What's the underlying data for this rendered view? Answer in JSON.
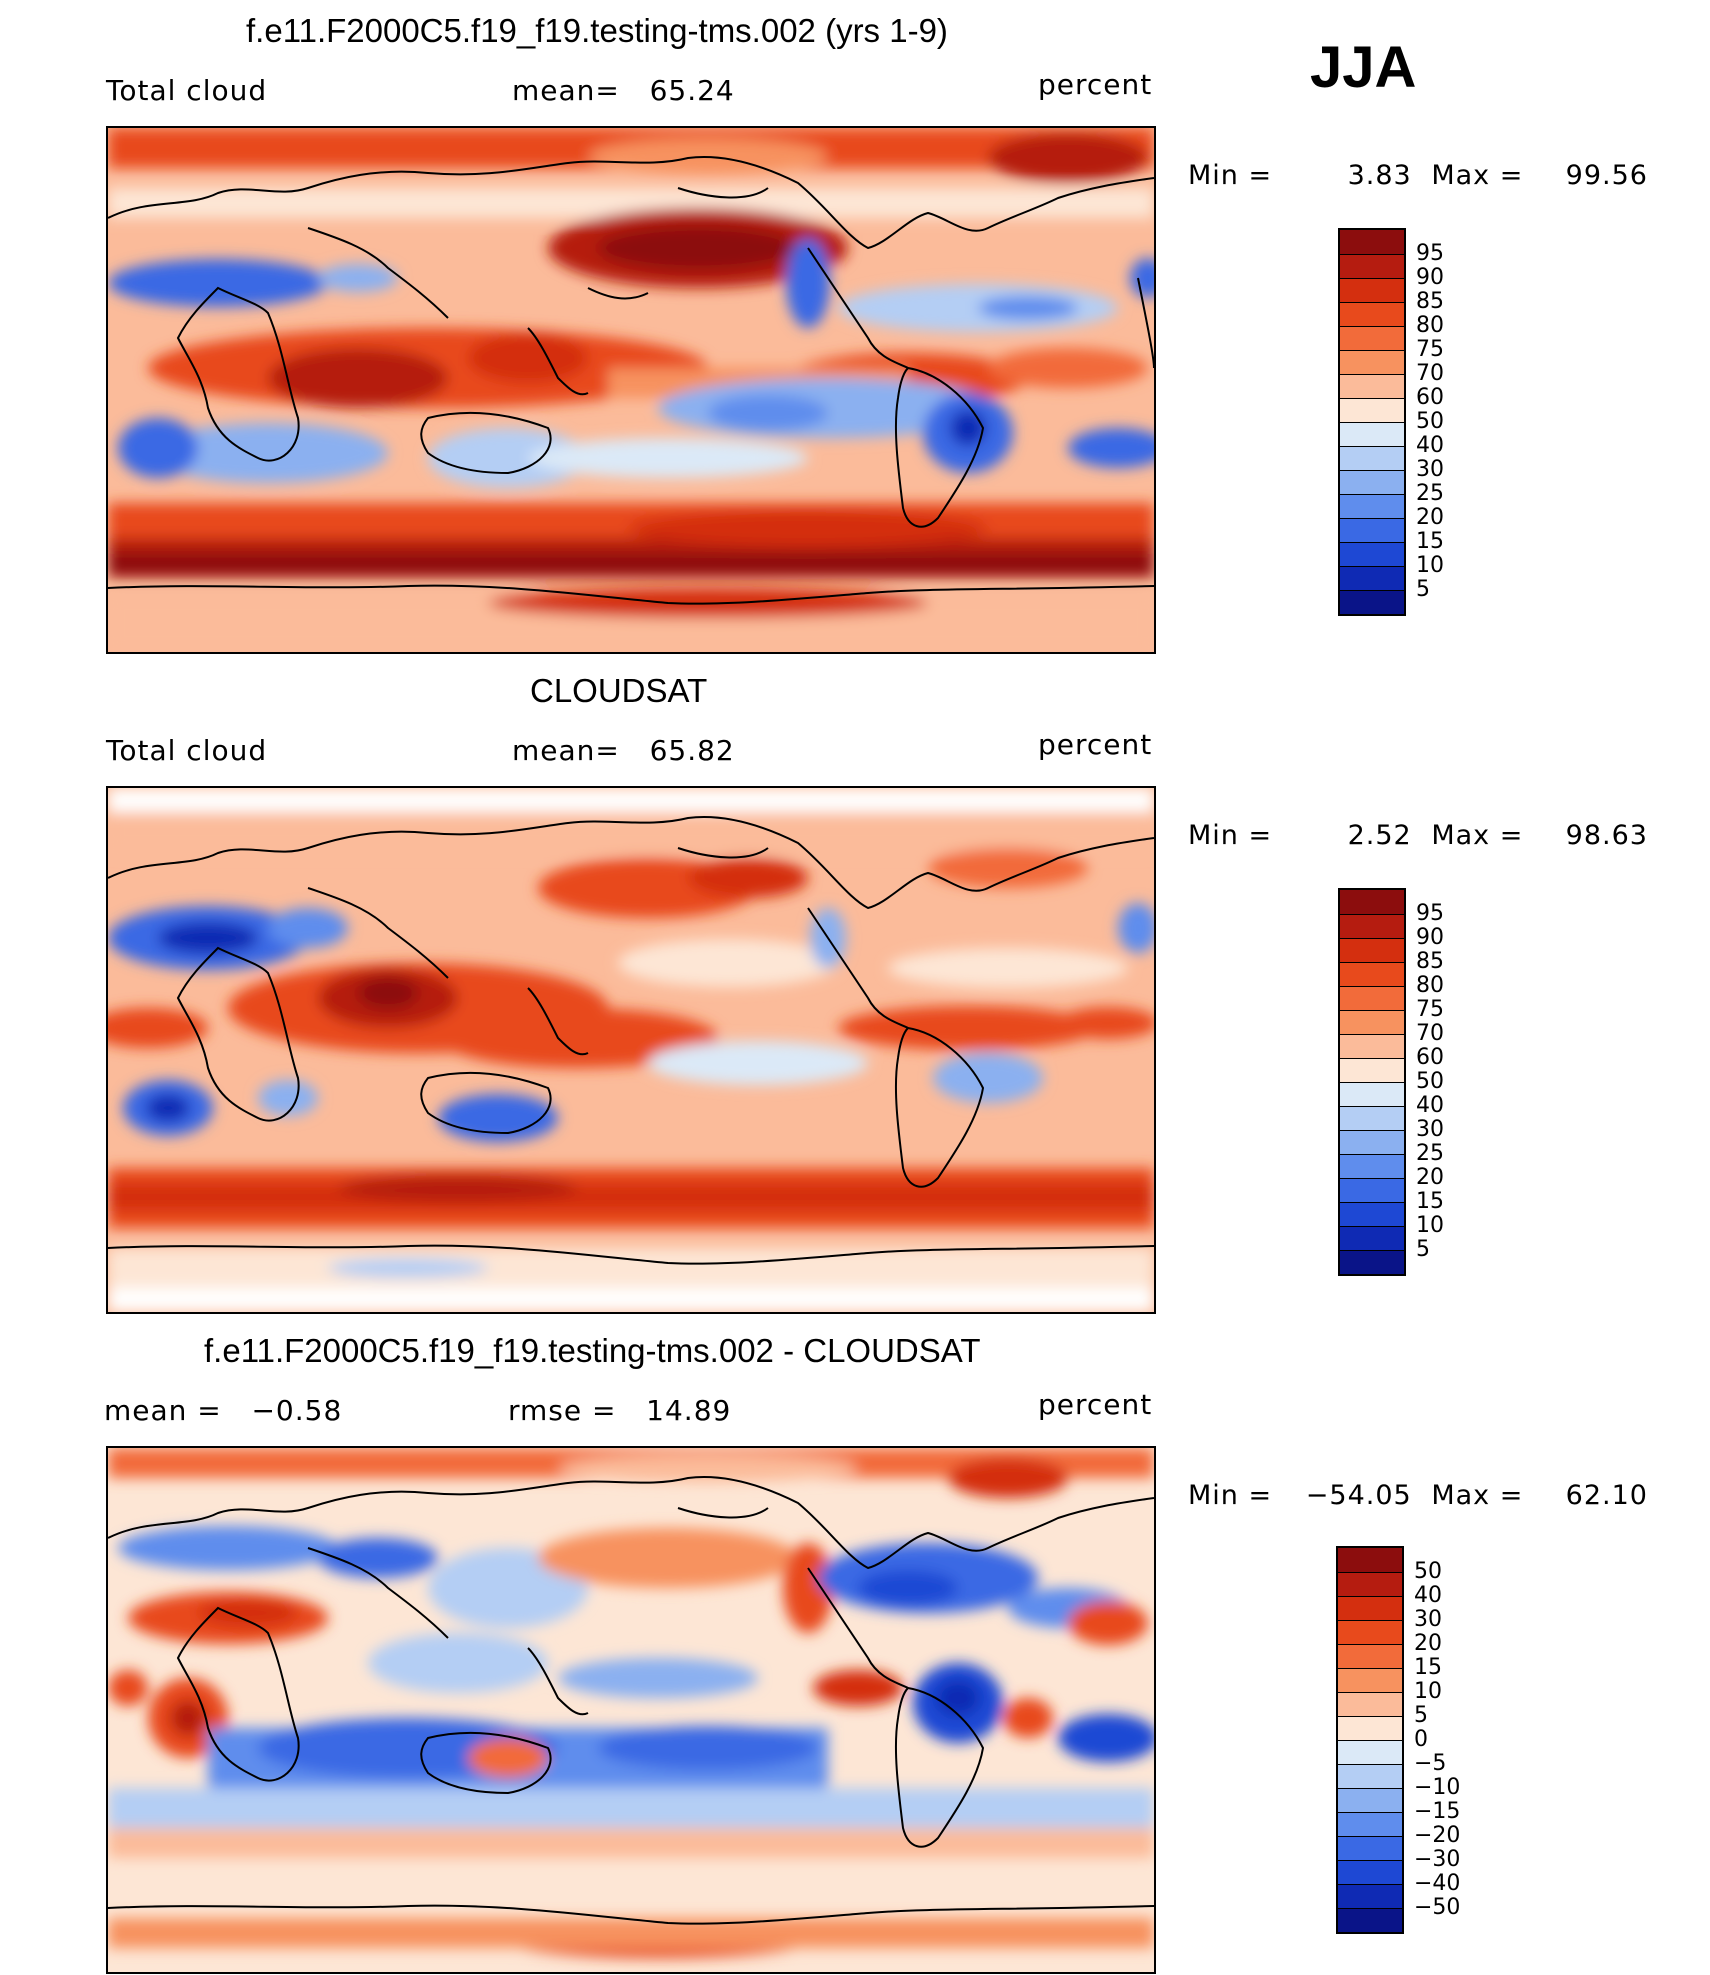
{
  "season": "JJA",
  "panels": [
    {
      "title": "f.e11.F2000C5.f19_f19.testing-tms.002 (yrs 1-9)",
      "left_label": "Total cloud",
      "center_label": "mean=   65.24",
      "right_label": "percent",
      "min_label": "Min =",
      "min_value": "3.83",
      "max_label": "Max =",
      "max_value": "99.56",
      "colorbar_labels": [
        "95",
        "90",
        "85",
        "80",
        "75",
        "70",
        "60",
        "50",
        "40",
        "30",
        "25",
        "20",
        "15",
        "10",
        "5"
      ]
    },
    {
      "title": "CLOUDSAT",
      "left_label": "Total cloud",
      "center_label": "mean=   65.82",
      "right_label": "percent",
      "min_label": "Min =",
      "min_value": "2.52",
      "max_label": "Max =",
      "max_value": "98.63",
      "colorbar_labels": [
        "95",
        "90",
        "85",
        "80",
        "75",
        "70",
        "60",
        "50",
        "40",
        "30",
        "25",
        "20",
        "15",
        "10",
        "5"
      ]
    },
    {
      "title": "f.e11.F2000C5.f19_f19.testing-tms.002 - CLOUDSAT",
      "left_label": "mean =   −0.58",
      "center_label": "rmse =   14.89",
      "right_label": "percent",
      "min_label": "Min =",
      "min_value": "−54.05",
      "max_label": "Max =",
      "max_value": "62.10",
      "colorbar_labels": [
        "50",
        "40",
        "30",
        "20",
        "15",
        "10",
        "5",
        "0",
        "−5",
        "−10",
        "−15",
        "−20",
        "−30",
        "−40",
        "−50"
      ]
    }
  ],
  "colorbar_colors": [
    "#8c0d0d",
    "#b51c10",
    "#d42f0f",
    "#e84a1c",
    "#f26b3a",
    "#f7925f",
    "#fbbb9a",
    "#fde6d5",
    "#dbe9f7",
    "#b4cef4",
    "#8bb0f0",
    "#5f8ded",
    "#3a69e4",
    "#1e48d4",
    "#0f2ab4",
    "#0a1488"
  ]
}
